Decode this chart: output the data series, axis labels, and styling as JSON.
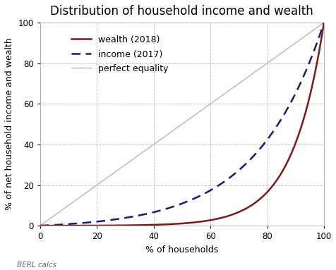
{
  "title": "Distribution of household income and wealth",
  "xlabel": "% of households",
  "ylabel": "% of net household income and wealth",
  "xlim": [
    0,
    100
  ],
  "ylim": [
    0,
    100
  ],
  "background_color": "#ffffff",
  "grid_color": "#c0c8d8",
  "equality_color": "#b8b8b8",
  "wealth_color": "#7a1a1a",
  "income_color": "#1a1a6e",
  "legend_labels": [
    "wealth (2018)",
    "income (2017)",
    "perfect equality"
  ],
  "berl_text": "BERL calcs",
  "title_fontsize": 12,
  "label_fontsize": 9,
  "tick_fontsize": 8.5,
  "legend_fontsize": 9,
  "wealth_k": 9.0,
  "income_k": 4.2
}
